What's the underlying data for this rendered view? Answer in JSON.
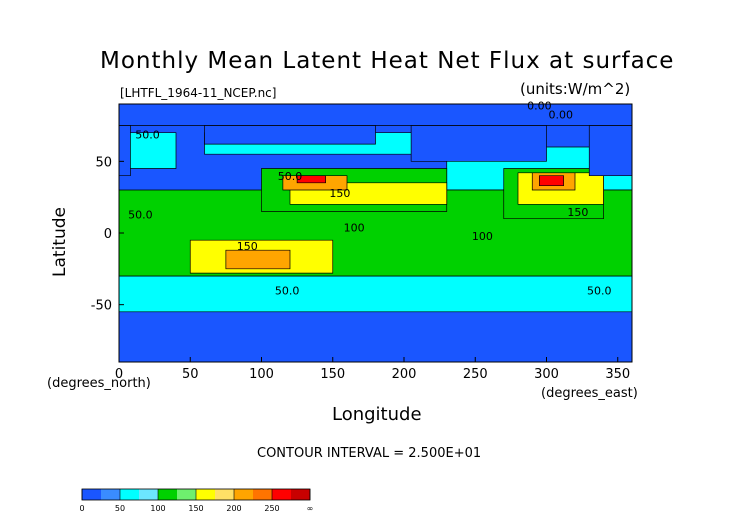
{
  "chart_data": {
    "type": "heatmap",
    "title": "Monthly Mean Latent Heat Net Flux at surface",
    "subtitle": "[LHTFL_1964-11_NCEP.nc]",
    "units": "(units:W/m^2)",
    "xlabel": "Longitude",
    "ylabel": "Latitude",
    "x_unit": "(degrees_east)",
    "y_unit": "(degrees_north)",
    "xlim": [
      0,
      360
    ],
    "ylim": [
      -90,
      90
    ],
    "x_ticks": [
      0,
      50,
      100,
      150,
      200,
      250,
      300,
      350
    ],
    "y_ticks": [
      -50,
      0,
      50
    ],
    "contour_interval_text": "CONTOUR INTERVAL = 2.500E+01",
    "contour_labels": [
      {
        "text": "0.00",
        "lon": 295,
        "lat": 86
      },
      {
        "text": "0.00",
        "lon": 310,
        "lat": 80
      },
      {
        "text": "50.0",
        "lon": 20,
        "lat": 66
      },
      {
        "text": "50.0",
        "lon": 15,
        "lat": 10
      },
      {
        "text": "50.0",
        "lon": 120,
        "lat": 37
      },
      {
        "text": "150",
        "lon": 155,
        "lat": 25
      },
      {
        "text": "150",
        "lon": 90,
        "lat": -12
      },
      {
        "text": "100",
        "lon": 165,
        "lat": 1
      },
      {
        "text": "100",
        "lon": 255,
        "lat": -5
      },
      {
        "text": "150",
        "lon": 322,
        "lat": 12
      },
      {
        "text": "50.0",
        "lon": 118,
        "lat": -43
      },
      {
        "text": "50.0",
        "lon": 337,
        "lat": -43
      }
    ],
    "colorbar": {
      "levels": [
        "0",
        "50",
        "100",
        "150",
        "200",
        "250",
        "∞"
      ],
      "colors": [
        "#1a56ff",
        "#3a8cff",
        "#00ffff",
        "#6ce6ff",
        "#00d100",
        "#6ef06e",
        "#ffff00",
        "#ffe066",
        "#ffa500",
        "#ff7400",
        "#ff0000",
        "#c80000"
      ]
    },
    "palette": {
      "land_bg": "#00d100",
      "deep_blue": "#1a56ff",
      "cyan": "#00ffff",
      "green": "#00d100",
      "yellow": "#ffff00",
      "orange": "#ffa500",
      "red": "#ff0000"
    },
    "regions": [
      {
        "level": "cyan",
        "poly": [
          [
            0,
            -30
          ],
          [
            360,
            -30
          ],
          [
            360,
            -55
          ],
          [
            0,
            -55
          ]
        ]
      },
      {
        "level": "cyan",
        "poly": [
          [
            0,
            45
          ],
          [
            40,
            45
          ],
          [
            40,
            70
          ],
          [
            0,
            70
          ]
        ]
      },
      {
        "level": "cyan",
        "poly": [
          [
            60,
            55
          ],
          [
            220,
            55
          ],
          [
            220,
            70
          ],
          [
            60,
            70
          ]
        ]
      },
      {
        "level": "cyan",
        "poly": [
          [
            230,
            30
          ],
          [
            360,
            30
          ],
          [
            360,
            60
          ],
          [
            230,
            60
          ]
        ]
      },
      {
        "level": "green",
        "poly": [
          [
            0,
            -30
          ],
          [
            360,
            -30
          ],
          [
            360,
            30
          ],
          [
            0,
            30
          ]
        ]
      },
      {
        "level": "green",
        "poly": [
          [
            100,
            15
          ],
          [
            230,
            15
          ],
          [
            230,
            45
          ],
          [
            100,
            45
          ]
        ]
      },
      {
        "level": "green",
        "poly": [
          [
            270,
            10
          ],
          [
            340,
            10
          ],
          [
            340,
            45
          ],
          [
            270,
            45
          ]
        ]
      },
      {
        "level": "yellow",
        "poly": [
          [
            50,
            -5
          ],
          [
            150,
            -5
          ],
          [
            150,
            -28
          ],
          [
            50,
            -28
          ]
        ]
      },
      {
        "level": "yellow",
        "poly": [
          [
            120,
            20
          ],
          [
            230,
            20
          ],
          [
            230,
            35
          ],
          [
            120,
            35
          ]
        ]
      },
      {
        "level": "yellow",
        "poly": [
          [
            280,
            20
          ],
          [
            340,
            20
          ],
          [
            340,
            42
          ],
          [
            280,
            42
          ]
        ]
      },
      {
        "level": "orange",
        "poly": [
          [
            75,
            -12
          ],
          [
            120,
            -12
          ],
          [
            120,
            -25
          ],
          [
            75,
            -25
          ]
        ]
      },
      {
        "level": "orange",
        "poly": [
          [
            115,
            30
          ],
          [
            160,
            30
          ],
          [
            160,
            40
          ],
          [
            115,
            40
          ]
        ]
      },
      {
        "level": "orange",
        "poly": [
          [
            290,
            30
          ],
          [
            320,
            30
          ],
          [
            320,
            42
          ],
          [
            290,
            42
          ]
        ]
      },
      {
        "level": "red",
        "poly": [
          [
            125,
            35
          ],
          [
            145,
            35
          ],
          [
            145,
            40
          ],
          [
            125,
            40
          ]
        ]
      },
      {
        "level": "red",
        "poly": [
          [
            295,
            33
          ],
          [
            312,
            33
          ],
          [
            312,
            40
          ],
          [
            295,
            40
          ]
        ]
      },
      {
        "level": "deep_blue",
        "poly": [
          [
            0,
            -55
          ],
          [
            360,
            -55
          ],
          [
            360,
            -90
          ],
          [
            0,
            -90
          ]
        ]
      },
      {
        "level": "deep_blue",
        "poly": [
          [
            0,
            75
          ],
          [
            360,
            75
          ],
          [
            360,
            90
          ],
          [
            0,
            90
          ]
        ]
      },
      {
        "level": "deep_blue",
        "poly": [
          [
            60,
            62
          ],
          [
            180,
            62
          ],
          [
            180,
            75
          ],
          [
            60,
            75
          ]
        ]
      },
      {
        "level": "deep_blue",
        "poly": [
          [
            205,
            50
          ],
          [
            300,
            50
          ],
          [
            300,
            75
          ],
          [
            205,
            75
          ]
        ]
      },
      {
        "level": "deep_blue",
        "poly": [
          [
            0,
            40
          ],
          [
            8,
            40
          ],
          [
            8,
            75
          ],
          [
            0,
            75
          ]
        ]
      },
      {
        "level": "deep_blue",
        "poly": [
          [
            330,
            40
          ],
          [
            360,
            40
          ],
          [
            360,
            75
          ],
          [
            330,
            75
          ]
        ]
      }
    ]
  }
}
